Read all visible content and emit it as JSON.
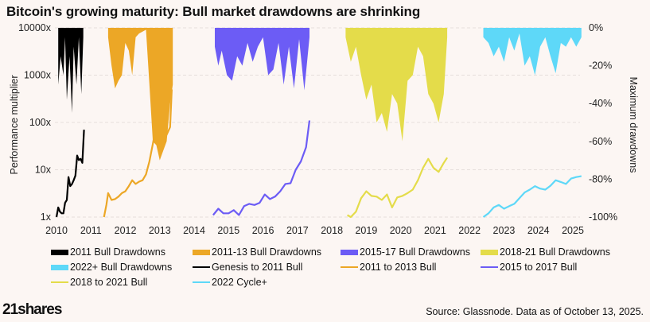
{
  "title": "Bitcoin's growing maturity: Bull market drawdowns are shrinking",
  "logo": "21shares",
  "source": "Source: Glassnode. Data as of October 13, 2025.",
  "chart_data": {
    "type": "line",
    "title": "Bitcoin's growing maturity: Bull market drawdowns are shrinking",
    "xlabel": "",
    "ylabel": "Performance multiplier",
    "y2label": "Maximum drawdowns",
    "xlim": [
      2010,
      2025.3
    ],
    "ylim": [
      1,
      10000
    ],
    "yscale": "log",
    "y2lim": [
      -100,
      0
    ],
    "grid": true,
    "legend_position": "bottom",
    "x_ticks": [
      "2010",
      "2011",
      "2012",
      "2013",
      "2014",
      "2015",
      "2016",
      "2017",
      "2018",
      "2019",
      "2020",
      "2021",
      "2022",
      "2023",
      "2024",
      "2025"
    ],
    "y_ticks": [
      "1x",
      "10x",
      "100x",
      "1000x",
      "10000x"
    ],
    "y2_ticks": [
      "0%",
      "-20%",
      "-40%",
      "-60%",
      "-80%",
      "-100%"
    ],
    "series": [
      {
        "name": "2011 Bull Drawdowns",
        "kind": "drawdown",
        "color": "#000000",
        "x": [
          2010.05,
          2010.12,
          2010.2,
          2010.25,
          2010.3,
          2010.38,
          2010.45,
          2010.5,
          2010.58,
          2010.65,
          2010.72,
          2010.78
        ],
        "y": [
          -30,
          -15,
          -25,
          -5,
          -38,
          -15,
          -45,
          -10,
          -30,
          -5,
          -35,
          -5
        ]
      },
      {
        "name": "2011-13 Bull Drawdowns",
        "kind": "drawdown",
        "color": "#eca726",
        "x": [
          2011.5,
          2011.6,
          2011.7,
          2011.8,
          2011.9,
          2012.0,
          2012.1,
          2012.2,
          2012.3,
          2012.4,
          2012.5,
          2012.6,
          2012.7,
          2012.8,
          2012.9,
          2013.0,
          2013.1,
          2013.2,
          2013.3,
          2013.38
        ],
        "y": [
          -5,
          -20,
          -32,
          -28,
          -25,
          -8,
          -12,
          -25,
          -5,
          -3,
          -2,
          -1,
          -30,
          -60,
          -62,
          -70,
          -65,
          -60,
          -40,
          -30
        ]
      },
      {
        "name": "2015-17 Bull Drawdowns",
        "kind": "drawdown",
        "color": "#6c5cf5",
        "x": [
          2014.6,
          2014.7,
          2014.8,
          2014.95,
          2015.1,
          2015.25,
          2015.4,
          2015.55,
          2015.7,
          2015.85,
          2016.0,
          2016.15,
          2016.3,
          2016.45,
          2016.6,
          2016.75,
          2016.9,
          2017.05,
          2017.2,
          2017.35
        ],
        "y": [
          -10,
          -20,
          -12,
          -25,
          -28,
          -15,
          -20,
          -8,
          -18,
          -10,
          -5,
          -25,
          -22,
          -8,
          -30,
          -10,
          -32,
          -6,
          -33,
          -5
        ]
      },
      {
        "name": "2018-21 Bull Drawdowns",
        "kind": "drawdown",
        "color": "#e4dc4a",
        "x": [
          2018.4,
          2018.55,
          2018.7,
          2018.85,
          2019.0,
          2019.15,
          2019.3,
          2019.45,
          2019.6,
          2019.75,
          2019.9,
          2020.05,
          2020.2,
          2020.35,
          2020.5,
          2020.65,
          2020.8,
          2020.95,
          2021.1,
          2021.25,
          2021.35
        ],
        "y": [
          -5,
          -18,
          -10,
          -25,
          -38,
          -30,
          -50,
          -45,
          -55,
          -35,
          -40,
          -60,
          -28,
          -25,
          -10,
          -15,
          -35,
          -40,
          -50,
          -35,
          -5
        ]
      },
      {
        "name": "2022+ Bull Drawdowns",
        "kind": "drawdown",
        "color": "#5ed8f8",
        "x": [
          2022.4,
          2022.55,
          2022.7,
          2022.85,
          2023.0,
          2023.15,
          2023.3,
          2023.45,
          2023.6,
          2023.75,
          2023.9,
          2024.05,
          2024.2,
          2024.35,
          2024.5,
          2024.65,
          2024.8,
          2024.95,
          2025.1,
          2025.25
        ],
        "y": [
          -5,
          -8,
          -15,
          -10,
          -18,
          -5,
          -12,
          -3,
          -20,
          -15,
          -25,
          -10,
          -5,
          -15,
          -24,
          -8,
          -10,
          -5,
          -10,
          -5
        ]
      },
      {
        "name": "Genesis to 2011 Bull",
        "kind": "line",
        "color": "#000000",
        "x": [
          2010.0,
          2010.05,
          2010.1,
          2010.15,
          2010.2,
          2010.25,
          2010.3,
          2010.35,
          2010.4,
          2010.45,
          2010.5,
          2010.55,
          2010.6,
          2010.65,
          2010.7,
          2010.75,
          2010.8
        ],
        "y": [
          1,
          1.6,
          1.3,
          1.2,
          1.2,
          2,
          2.3,
          7,
          4.5,
          5,
          6,
          7.5,
          20,
          16,
          17,
          14,
          70
        ]
      },
      {
        "name": "2011 to 2013 Bull",
        "kind": "line",
        "color": "#eca726",
        "x": [
          2011.38,
          2011.45,
          2011.5,
          2011.6,
          2011.7,
          2011.8,
          2011.9,
          2012.0,
          2012.1,
          2012.2,
          2012.3,
          2012.4,
          2012.5,
          2012.6,
          2012.7,
          2012.8,
          2012.9,
          2013.0,
          2013.1,
          2013.2,
          2013.3,
          2013.35
        ],
        "y": [
          1,
          1.8,
          3.2,
          2.3,
          2.4,
          2.7,
          3.2,
          3.5,
          4.5,
          6,
          5,
          5.6,
          6,
          8,
          15,
          35,
          90,
          55,
          45,
          55,
          80,
          500
        ]
      },
      {
        "name": "2015 to 2017 Bull",
        "kind": "line",
        "color": "#6c5cf5",
        "x": [
          2014.55,
          2014.7,
          2014.85,
          2015.0,
          2015.15,
          2015.3,
          2015.45,
          2015.6,
          2015.75,
          2015.9,
          2016.05,
          2016.2,
          2016.35,
          2016.5,
          2016.65,
          2016.8,
          2016.95,
          2017.1,
          2017.25,
          2017.35
        ],
        "y": [
          1.1,
          1.5,
          1.2,
          1.2,
          1.4,
          1.1,
          1.7,
          1.9,
          1.8,
          2.0,
          3.0,
          2.4,
          2.7,
          3.5,
          5.0,
          5.2,
          10,
          15,
          30,
          110
        ]
      },
      {
        "name": "2018 to 2021 Bull",
        "kind": "line",
        "color": "#e4dc4a",
        "x": [
          2018.45,
          2018.55,
          2018.7,
          2018.85,
          2019.0,
          2019.15,
          2019.3,
          2019.45,
          2019.6,
          2019.75,
          2019.9,
          2020.05,
          2020.2,
          2020.35,
          2020.5,
          2020.65,
          2020.8,
          2020.95,
          2021.1,
          2021.25,
          2021.35
        ],
        "y": [
          1.1,
          1.0,
          1.3,
          2.5,
          3.5,
          2.8,
          2.7,
          2.3,
          3.0,
          1.6,
          2.6,
          2.8,
          3.2,
          3.8,
          6,
          11,
          17,
          11,
          9,
          14,
          18
        ]
      },
      {
        "name": "2022 Cycle+",
        "kind": "line",
        "color": "#5ed8f8",
        "x": [
          2022.4,
          2022.55,
          2022.7,
          2022.85,
          2023.0,
          2023.15,
          2023.3,
          2023.45,
          2023.6,
          2023.75,
          2023.9,
          2024.05,
          2024.2,
          2024.35,
          2024.5,
          2024.65,
          2024.8,
          2024.95,
          2025.1,
          2025.25
        ],
        "y": [
          1,
          1.2,
          1.6,
          1.8,
          1.5,
          1.7,
          1.9,
          2.5,
          3.3,
          3.8,
          4.5,
          4.0,
          3.8,
          4.6,
          6,
          5.5,
          5.0,
          6.5,
          7.0,
          7.3
        ]
      }
    ]
  },
  "legend": [
    {
      "label": "2011 Bull Drawdowns",
      "type": "fill",
      "color": "#000000"
    },
    {
      "label": "2011-13 Bull Drawdowns",
      "type": "fill",
      "color": "#eca726"
    },
    {
      "label": "2015-17 Bull Drawdowns",
      "type": "fill",
      "color": "#6c5cf5"
    },
    {
      "label": "2018-21 Bull Drawdowns",
      "type": "fill",
      "color": "#e4dc4a"
    },
    {
      "label": "2022+ Bull Drawdowns",
      "type": "fill",
      "color": "#5ed8f8"
    },
    {
      "label": "Genesis to 2011 Bull",
      "type": "line",
      "color": "#000000"
    },
    {
      "label": "2011 to 2013 Bull",
      "type": "line",
      "color": "#eca726"
    },
    {
      "label": "2015 to 2017 Bull",
      "type": "line",
      "color": "#6c5cf5"
    },
    {
      "label": "2018 to 2021 Bull",
      "type": "line",
      "color": "#e4dc4a"
    },
    {
      "label": "2022 Cycle+",
      "type": "line",
      "color": "#5ed8f8"
    }
  ]
}
